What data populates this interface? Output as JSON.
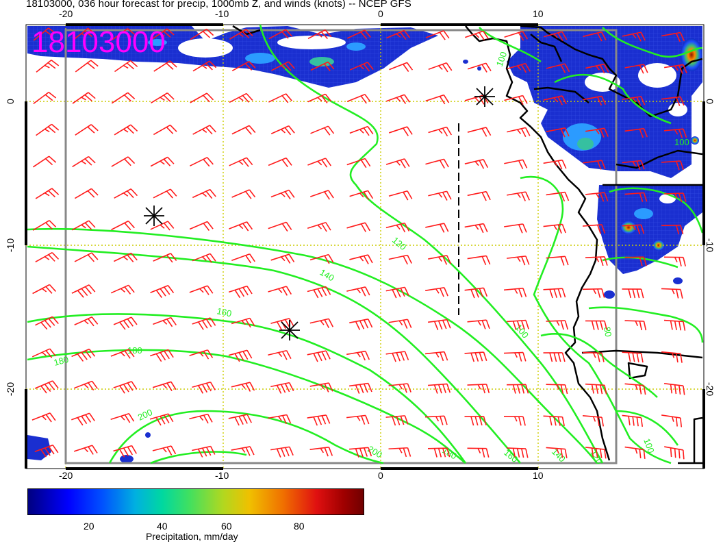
{
  "title": "18103000, 036 hour forecast for precip, 1000mb Z, and winds (knots) -- NCEP GFS",
  "stamp": "18103000",
  "top_ticks": [
    "-20",
    "-10",
    "0",
    "10"
  ],
  "bottom_ticks": [
    "-20",
    "-10",
    "0",
    "10"
  ],
  "left_ticks": [
    "0",
    "-10",
    "-20"
  ],
  "right_ticks": [
    "0",
    "-10",
    "-20"
  ],
  "contour_labels": [
    "100",
    "120",
    "140",
    "160",
    "180",
    "180",
    "200",
    "200",
    "180",
    "160",
    "140",
    "120",
    "100",
    "100",
    "80",
    "100"
  ],
  "colorbar": {
    "ticks": [
      "20",
      "40",
      "60",
      "80"
    ],
    "label": "Precipitation, mm/day"
  },
  "colors": {
    "contour": "#22ee22",
    "wind": "#ff1a1a",
    "grid": "#cccc00",
    "coast": "#000000",
    "stamp": "#ff00ff"
  }
}
